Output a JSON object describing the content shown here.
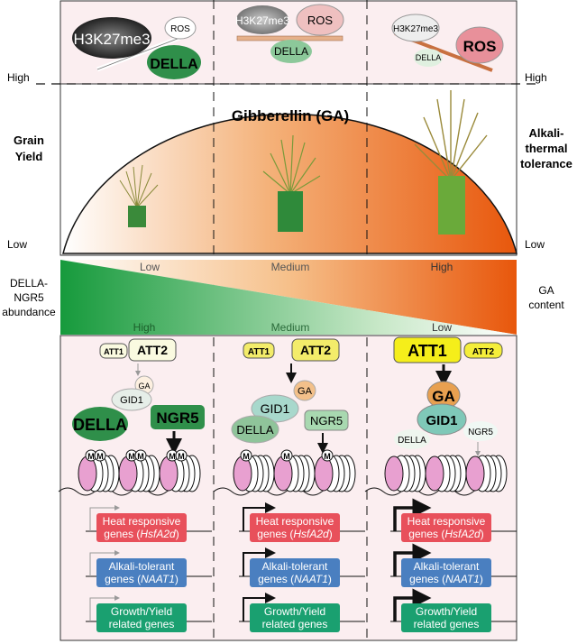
{
  "axis_left": {
    "high": "High",
    "low": "Low",
    "label_line1": "Grain",
    "label_line2": "Yield"
  },
  "axis_right": {
    "high": "High",
    "low": "Low",
    "label_line1": "Alkali-",
    "label_line2": "thermal",
    "label_line3": "tolerance"
  },
  "arch_title": "Gibberellin (GA)",
  "band": {
    "left_label_line1": "DELLA-",
    "left_label_line2": "NGR5",
    "left_label_line3": "abundance",
    "right_label_line1": "GA",
    "right_label_line2": "content",
    "ga_levels": [
      "Low",
      "Medium",
      "High"
    ],
    "della_levels": [
      "High",
      "Medium",
      "Low"
    ]
  },
  "balance": {
    "h3k27me3": "H3K27me3",
    "ros": "ROS",
    "della": "DELLA"
  },
  "proteins": {
    "att1": "ATT1",
    "att2": "ATT2",
    "ga": "GA",
    "gid1": "GID1",
    "della": "DELLA",
    "ngr5": "NGR5",
    "methyl": "M"
  },
  "genes": {
    "heat_line1": "Heat responsive",
    "heat_line2_prefix": "genes (",
    "heat_gene": "HsfA2d",
    "heat_suffix": ")",
    "alkali_line1": "Alkali-tolerant",
    "alkali_line2_prefix": "genes (",
    "alkali_gene": "NAAT1",
    "alkali_suffix": ")",
    "growth_line1": "Growth/Yield",
    "growth_line2": "related genes"
  },
  "colors": {
    "orange": "#e8600f",
    "green": "#1f8f4a",
    "panel": "#fbeef0",
    "heat": "#e8505b",
    "alkali": "#4a7fc0",
    "growth": "#1aa070",
    "att_yellow": "#f5ee3a"
  }
}
